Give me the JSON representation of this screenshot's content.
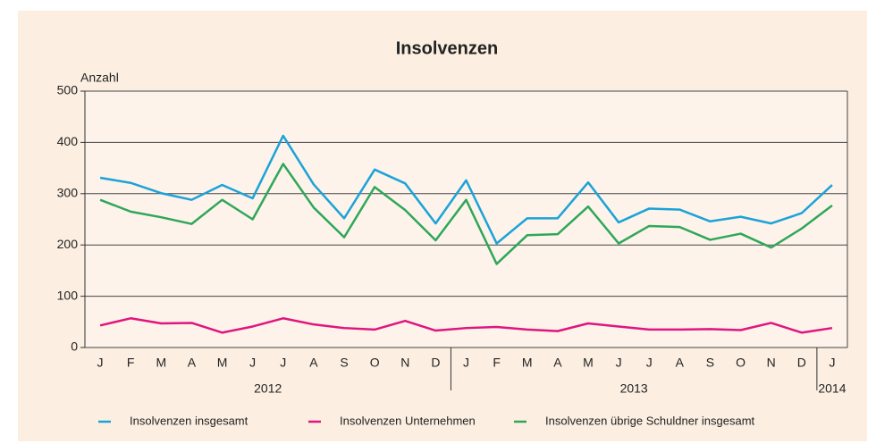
{
  "chart_data": {
    "type": "line",
    "title": "Insolvenzen",
    "y_label": "Anzahl",
    "categories": [
      "J",
      "F",
      "M",
      "A",
      "M",
      "J",
      "J",
      "A",
      "S",
      "O",
      "N",
      "D",
      "J",
      "F",
      "M",
      "A",
      "M",
      "J",
      "J",
      "A",
      "S",
      "O",
      "N",
      "D",
      "J"
    ],
    "x_groups": [
      {
        "label": "2012",
        "size": 12
      },
      {
        "label": "2013",
        "size": 12
      },
      {
        "label": "2014",
        "size": 1
      }
    ],
    "series": [
      {
        "name": "Insolvenzen insgesamt",
        "color": "#1ba3d8",
        "values": [
          331,
          321,
          301,
          288,
          317,
          291,
          413,
          318,
          252,
          347,
          320,
          242,
          326,
          203,
          252,
          252,
          322,
          244,
          271,
          269,
          246,
          255,
          242,
          262,
          317
        ]
      },
      {
        "name": "Insolvenzen Unternehmen",
        "color": "#e0157f",
        "values": [
          43,
          57,
          47,
          48,
          29,
          41,
          57,
          45,
          38,
          35,
          52,
          33,
          38,
          40,
          35,
          32,
          47,
          41,
          35,
          35,
          36,
          34,
          48,
          29,
          38
        ]
      },
      {
        "name": "Insolvenzen übrige Schuldner insgesamt",
        "color": "#2fa75a",
        "values": [
          288,
          265,
          254,
          241,
          288,
          250,
          358,
          273,
          215,
          313,
          268,
          209,
          288,
          163,
          219,
          221,
          275,
          203,
          237,
          235,
          210,
          222,
          195,
          232,
          277
        ]
      }
    ],
    "ylim": [
      0,
      500
    ],
    "yticks": [
      0,
      100,
      200,
      300,
      400,
      500
    ],
    "grid": true
  }
}
